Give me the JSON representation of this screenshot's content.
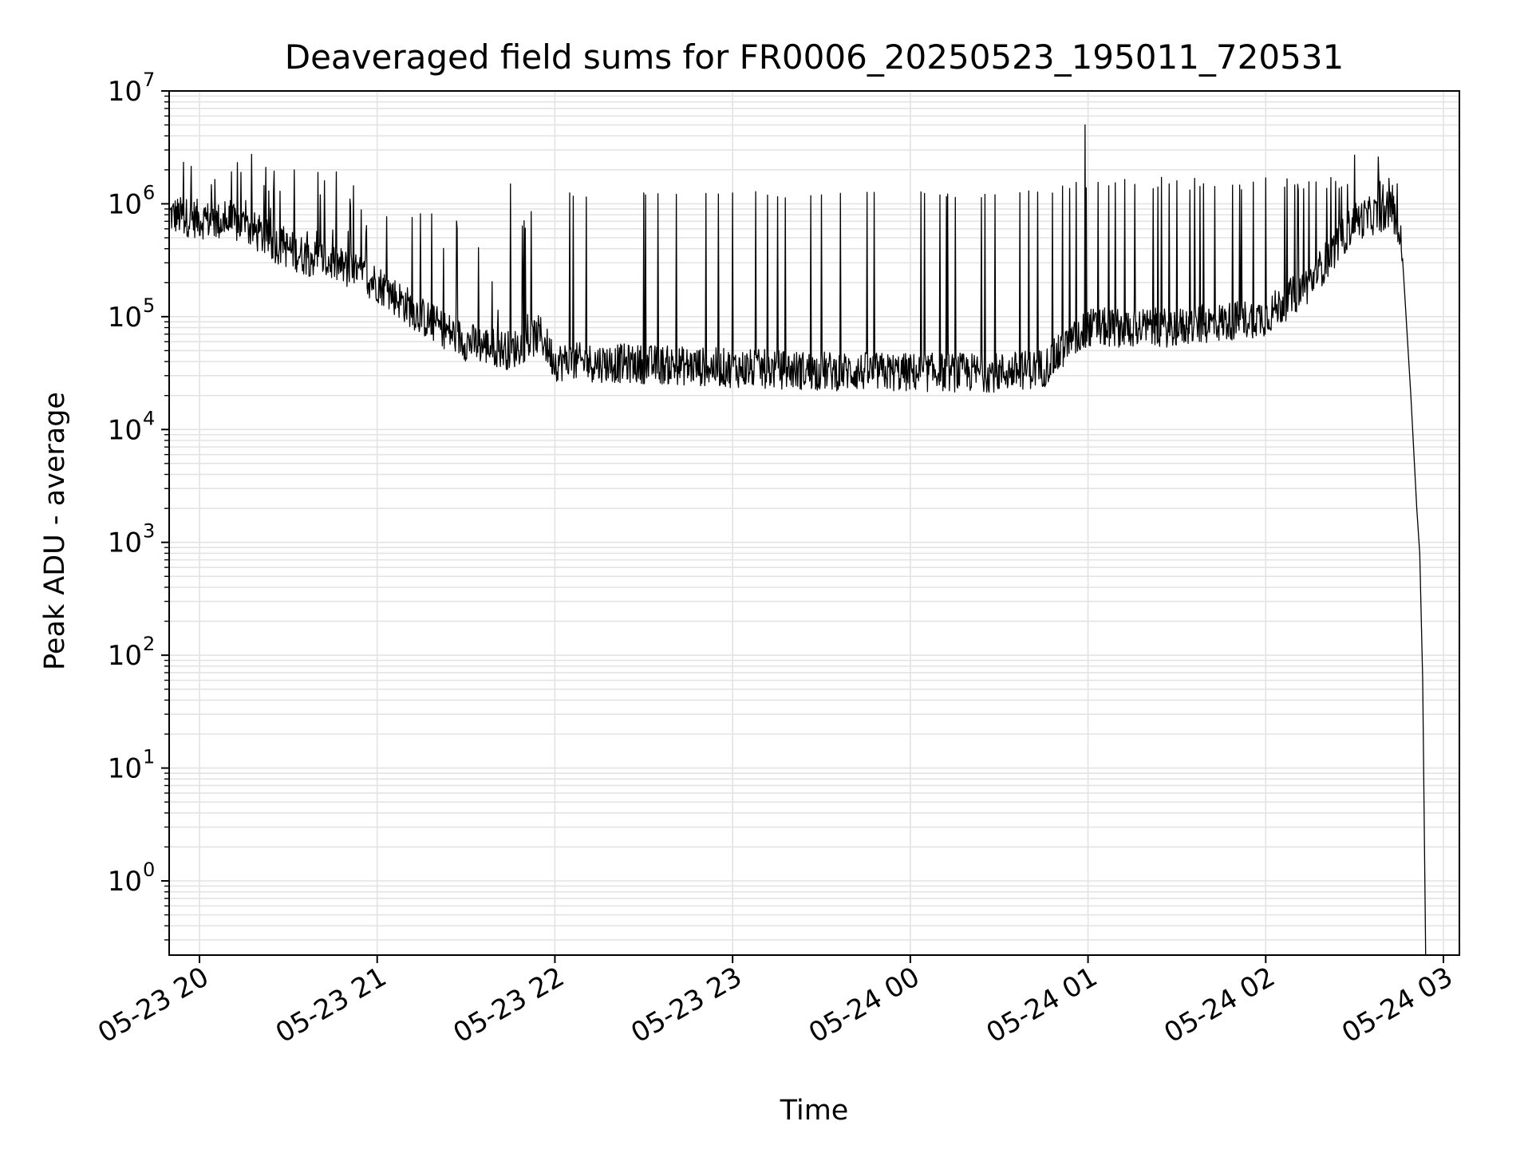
{
  "chart_data": {
    "type": "line",
    "title": "Deaveraged field sums for FR0006_20250523_195011_720531",
    "xlabel": "Time",
    "ylabel": "Peak ADU - average",
    "yscale": "log",
    "ylim": [
      0.22,
      10000000
    ],
    "xlim": [
      "05-23 19:50",
      "05-24 03:00"
    ],
    "x_ticks": [
      "05-23 20",
      "05-23 21",
      "05-23 22",
      "05-23 23",
      "05-24 00",
      "05-24 01",
      "05-24 02",
      "05-24 03"
    ],
    "y_ticks": [
      {
        "base": "10",
        "exp": "0",
        "value": 1
      },
      {
        "base": "10",
        "exp": "1",
        "value": 10
      },
      {
        "base": "10",
        "exp": "2",
        "value": 100
      },
      {
        "base": "10",
        "exp": "3",
        "value": 1000
      },
      {
        "base": "10",
        "exp": "4",
        "value": 10000
      },
      {
        "base": "10",
        "exp": "5",
        "value": 100000
      },
      {
        "base": "10",
        "exp": "6",
        "value": 1000000
      },
      {
        "base": "10",
        "exp": "7",
        "value": 10000000
      }
    ],
    "grid": true,
    "line_color": "#000000",
    "grid_color": "#e3e3e3",
    "series": [
      {
        "baseline": [
          {
            "x": "05-23 19:50",
            "y": 800000
          },
          {
            "x": "05-23 20:05",
            "y": 700000
          },
          {
            "x": "05-23 20:15",
            "y": 650000
          },
          {
            "x": "05-23 20:25",
            "y": 450000
          },
          {
            "x": "05-23 20:35",
            "y": 350000
          },
          {
            "x": "05-23 20:45",
            "y": 300000
          },
          {
            "x": "05-23 21:00",
            "y": 200000
          },
          {
            "x": "05-23 21:15",
            "y": 100000
          },
          {
            "x": "05-23 21:30",
            "y": 60000
          },
          {
            "x": "05-23 21:45",
            "y": 50000
          },
          {
            "x": "05-23 21:55",
            "y": 70000
          },
          {
            "x": "05-23 22:00",
            "y": 40000
          },
          {
            "x": "05-23 22:30",
            "y": 38000
          },
          {
            "x": "05-23 23:00",
            "y": 35000
          },
          {
            "x": "05-23 23:30",
            "y": 33000
          },
          {
            "x": "05-24 00:00",
            "y": 32000
          },
          {
            "x": "05-24 00:30",
            "y": 32000
          },
          {
            "x": "05-24 00:45",
            "y": 35000
          },
          {
            "x": "05-24 01:00",
            "y": 80000
          },
          {
            "x": "05-24 01:30",
            "y": 80000
          },
          {
            "x": "05-24 02:00",
            "y": 100000
          },
          {
            "x": "05-24 02:15",
            "y": 200000
          },
          {
            "x": "05-24 02:30",
            "y": 700000
          },
          {
            "x": "05-24 02:43",
            "y": 900000
          },
          {
            "x": "05-24 02:46",
            "y": 400000
          },
          {
            "x": "05-24 02:49",
            "y": 20000
          },
          {
            "x": "05-24 02:51",
            "y": 2000
          },
          {
            "x": "05-24 02:52",
            "y": 800
          },
          {
            "x": "05-24 02:53",
            "y": 60
          },
          {
            "x": "05-24 02:54",
            "y": 0.22
          }
        ],
        "peaks": [
          {
            "x": "05-23 20:14",
            "y": 1900000
          },
          {
            "x": "05-23 20:32",
            "y": 2000000
          },
          {
            "x": "05-23 20:40",
            "y": 1900000
          },
          {
            "x": "05-23 21:45",
            "y": 1500000
          },
          {
            "x": "05-23 22:05",
            "y": 1250000
          },
          {
            "x": "05-23 22:30",
            "y": 1250000
          },
          {
            "x": "05-23 23:00",
            "y": 1250000
          },
          {
            "x": "05-23 23:30",
            "y": 1200000
          },
          {
            "x": "05-24 00:10",
            "y": 1200000
          },
          {
            "x": "05-24 00:40",
            "y": 1300000
          },
          {
            "x": "05-24 00:59",
            "y": 5000000
          },
          {
            "x": "05-24 01:30",
            "y": 1600000
          },
          {
            "x": "05-24 02:00",
            "y": 1700000
          },
          {
            "x": "05-24 02:30",
            "y": 2700000
          },
          {
            "x": "05-24 02:38",
            "y": 2600000
          }
        ]
      }
    ]
  }
}
